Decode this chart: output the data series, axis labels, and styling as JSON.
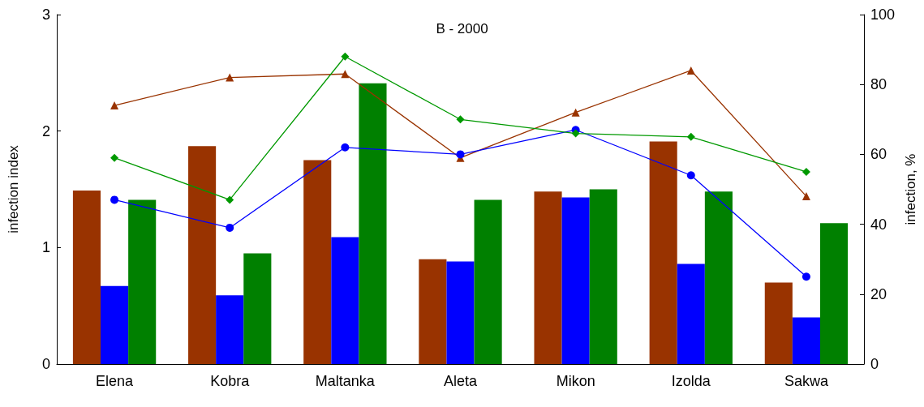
{
  "chart_data": {
    "type": "bar",
    "title": "B - 2000",
    "ylabel": "infection index",
    "y2label": "infection, %",
    "categories": [
      "Elena",
      "Kobra",
      "Maltanka",
      "Aleta",
      "Mikon",
      "Izolda",
      "Sakwa"
    ],
    "series": [
      {
        "color": "#993300",
        "values": [
          1.49,
          1.87,
          1.75,
          0.9,
          1.48,
          1.91,
          0.7
        ]
      },
      {
        "color": "#0000ff",
        "values": [
          0.67,
          0.59,
          1.09,
          0.88,
          1.43,
          0.86,
          0.4
        ]
      },
      {
        "color": "#008000",
        "values": [
          1.41,
          0.95,
          2.41,
          1.41,
          1.5,
          1.48,
          1.21
        ]
      },
      {
        "type": "line",
        "axis": "y2",
        "marker": "triangle",
        "color": "#993300",
        "values": [
          74,
          82,
          83,
          59,
          72,
          84,
          48
        ]
      },
      {
        "type": "line",
        "axis": "y2",
        "marker": "circle",
        "color": "#0000ff",
        "values": [
          47,
          39,
          62,
          60,
          67,
          54,
          25
        ]
      },
      {
        "type": "line",
        "axis": "y2",
        "marker": "diamond",
        "color": "#009900",
        "values": [
          59,
          47,
          88,
          70,
          66,
          65,
          55
        ]
      }
    ],
    "ylim": [
      0,
      3
    ],
    "yticks": [
      0,
      1,
      2,
      3
    ],
    "y2lim": [
      0,
      100
    ],
    "y2ticks": [
      0,
      20,
      40,
      60,
      80,
      100
    ],
    "grid": false
  }
}
